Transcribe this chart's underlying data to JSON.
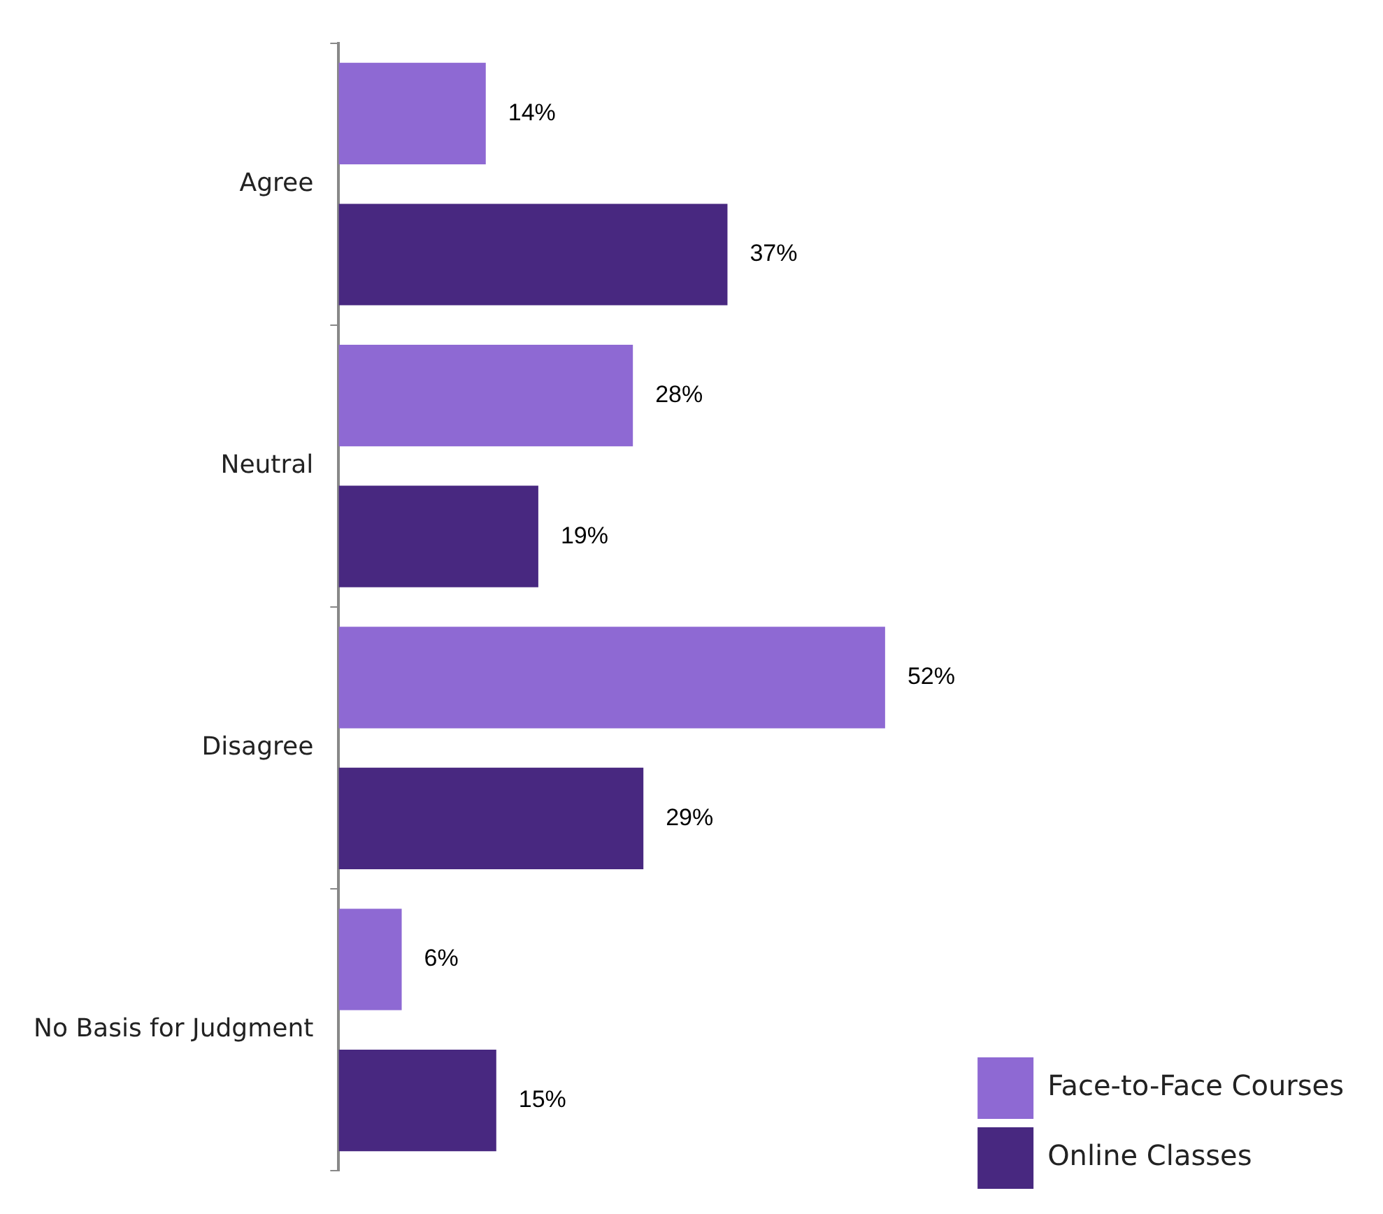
{
  "chart_data": {
    "type": "bar",
    "orientation": "horizontal",
    "categories": [
      "Agree",
      "Neutral",
      "Disagree",
      "No Basis for Judgment"
    ],
    "series": [
      {
        "name": "Face-to-Face Courses",
        "color": "#8e69d3",
        "values": [
          14,
          28,
          52,
          6
        ],
        "value_labels": [
          "14%",
          "28%",
          "52%",
          "6%"
        ]
      },
      {
        "name": "Online Classes",
        "color": "#482880",
        "values": [
          37,
          19,
          29,
          15
        ],
        "value_labels": [
          "37%",
          "19%",
          "29%",
          "15%"
        ]
      }
    ],
    "tick_labels": "y",
    "legend": "bottom right"
  }
}
